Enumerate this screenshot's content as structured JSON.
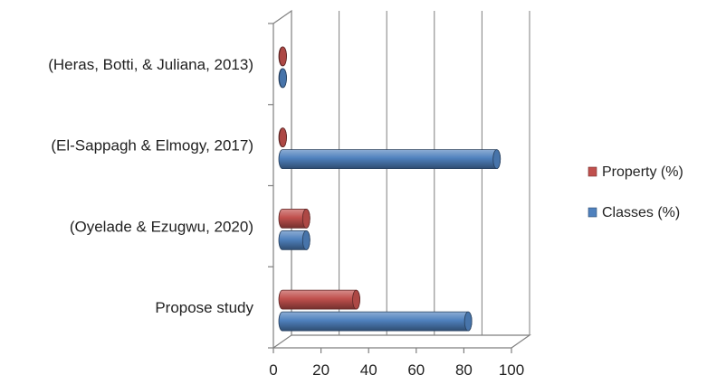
{
  "chart_data": {
    "type": "bar",
    "orientation": "horizontal",
    "style": "3d-cylinder",
    "categories": [
      "(Heras, Botti, & Juliana, 2013)",
      "(El-Sappagh & Elmogy, 2017)",
      "(Oyelade & Ezugwu, 2020)",
      "Propose study"
    ],
    "series": [
      {
        "name": "Property (%)",
        "color": "#c0504d",
        "values": [
          0,
          0,
          10,
          31
        ]
      },
      {
        "name": "Classes (%)",
        "color": "#4f81bd",
        "values": [
          0,
          90,
          10,
          78
        ]
      }
    ],
    "x_ticks": [
      "0",
      "20",
      "40",
      "60",
      "80",
      "100"
    ],
    "xlim": [
      0,
      100
    ],
    "grid": true,
    "legend": "right"
  }
}
